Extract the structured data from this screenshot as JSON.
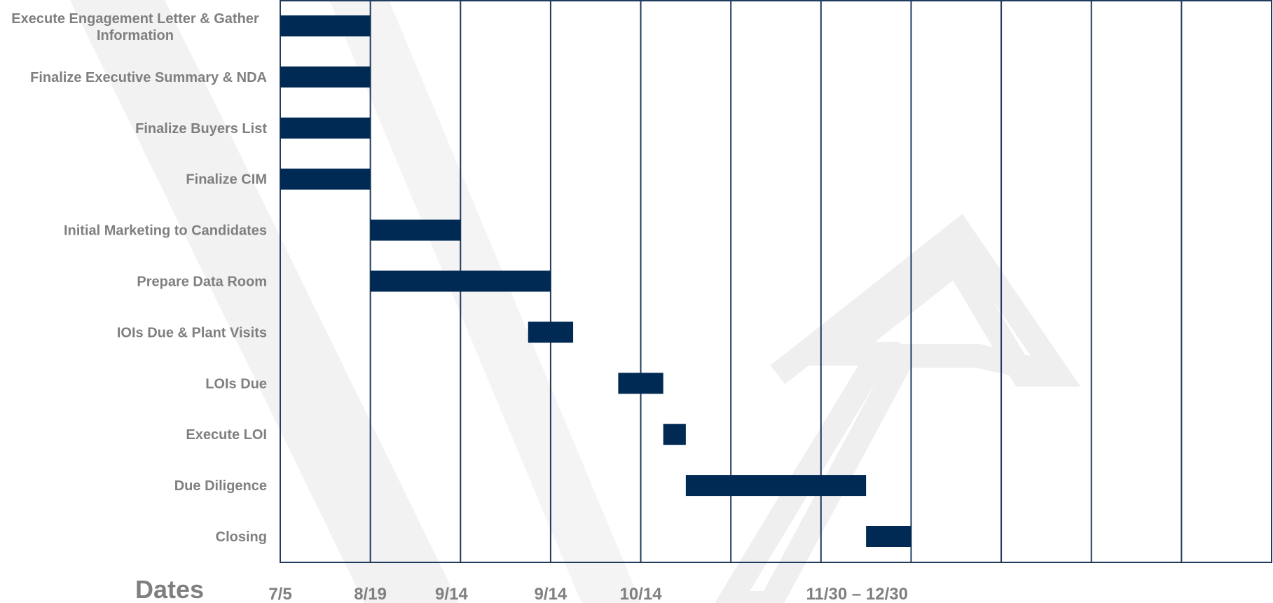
{
  "chart_data": {
    "type": "gantt",
    "tasks": [
      {
        "name": "Execute Engagement Letter & Gather Information",
        "start": 0,
        "end": 1
      },
      {
        "name": "Finalize Executive Summary & NDA",
        "start": 0,
        "end": 1
      },
      {
        "name": "Finalize Buyers List",
        "start": 0,
        "end": 1
      },
      {
        "name": "Finalize CIM",
        "start": 0,
        "end": 1
      },
      {
        "name": "Initial Marketing to Candidates",
        "start": 1,
        "end": 2
      },
      {
        "name": "Prepare Data Room",
        "start": 1,
        "end": 3
      },
      {
        "name": "IOIs Due & Plant Visits",
        "start": 2.75,
        "end": 3.25
      },
      {
        "name": "LOIs Due",
        "start": 3.75,
        "end": 4.25
      },
      {
        "name": "Execute LOI",
        "start": 4.25,
        "end": 4.5
      },
      {
        "name": "Due Diligence",
        "start": 4.5,
        "end": 6.5
      },
      {
        "name": "Closing",
        "start": 6.5,
        "end": 7
      }
    ],
    "xlim": [
      0,
      11
    ],
    "dates_title": "Dates",
    "date_labels": [
      {
        "text": "7/5",
        "at": 0
      },
      {
        "text": "8/19",
        "at": 1
      },
      {
        "text": "9/14",
        "at": 1.9
      },
      {
        "text": "9/14",
        "at": 3
      },
      {
        "text": "10/14",
        "at": 4
      },
      {
        "text": "11/30 – 12/30",
        "at": 6.4
      }
    ],
    "grid": true,
    "colors": {
      "bar": "#002a54",
      "grid": "#1f3b5e",
      "label": "#7f7f7f",
      "watermark": "#efefef"
    }
  }
}
